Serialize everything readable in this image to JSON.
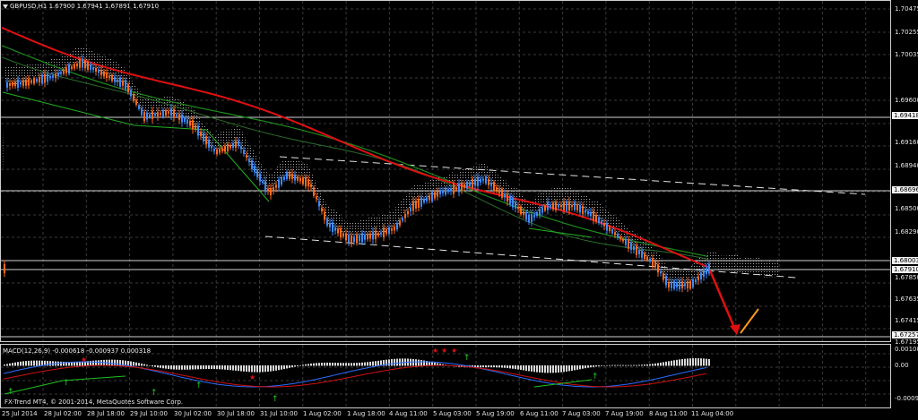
{
  "chart": {
    "symbol_title": "GBPUSD,H1  1.67900 1.67941 1.67891 1.67910",
    "background": "#000000",
    "grid_color": "#3a3a3a",
    "bull_color": "#3d8bff",
    "bear_color": "#ff6a1a",
    "ma_fast_color": "#e01010",
    "ma_slow_color": "#1e8c1e",
    "trend_color": "#22b022",
    "cloud_color": "#b9b9b9"
  },
  "price_axis": {
    "ticks": [
      "1.70475",
      "1.70255",
      "1.70035",
      "1.69600",
      "1.69160",
      "1.68940",
      "1.68500",
      "1.68290",
      "1.67850",
      "1.67635",
      "1.67415",
      "1.67195"
    ],
    "lines": [
      {
        "value": "1.69418",
        "label": "1.69418"
      },
      {
        "value": "1.68696",
        "label": "1.68696"
      },
      {
        "value": "1.68003",
        "label": "1.68003"
      },
      {
        "value": "1.67910",
        "label": "1.67910"
      },
      {
        "value": "1.67257",
        "label": "1.67257"
      }
    ]
  },
  "time_axis": {
    "labels": [
      "25 Jul 2014",
      "28 Jul 02:00",
      "28 Jul 18:00",
      "29 Jul 10:00",
      "30 Jul 02:00",
      "30 Jul 18:00",
      "31 Jul 10:00",
      "1 Aug 02:00",
      "1 Aug 18:00",
      "4 Aug 11:00",
      "5 Aug 03:00",
      "5 Aug 19:00",
      "6 Aug 11:00",
      "7 Aug 03:00",
      "7 Aug 19:00",
      "8 Aug 11:00",
      "11 Aug 04:00"
    ]
  },
  "macd": {
    "title": "MACD(12,26,9) -0.000618 -0.000937 0.000318",
    "ticks": [
      "0.0010002",
      "0.00",
      "-0.00099"
    ],
    "copyright": "FX-Trend MT4, © 2001-2014, MetaQuotes Software Corp."
  }
}
